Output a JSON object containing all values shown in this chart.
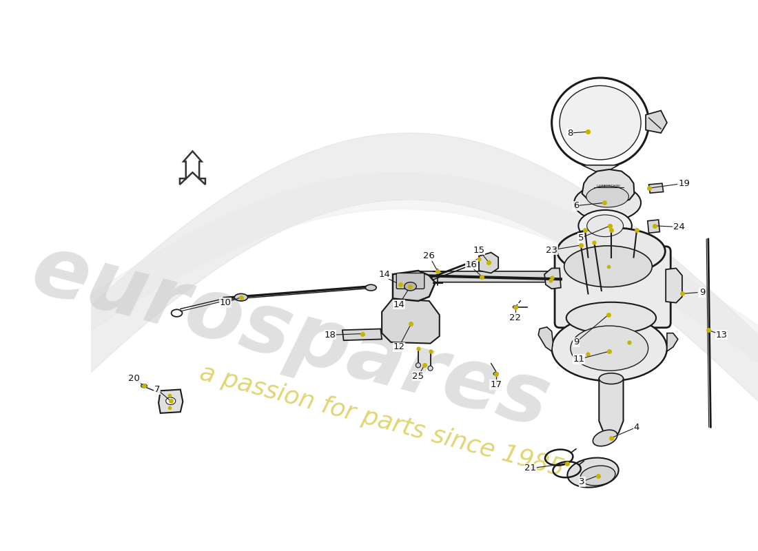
{
  "background_color": "#ffffff",
  "line_color": "#1a1a1a",
  "dot_color": "#c8b400",
  "watermark_color": "#d0d0d0",
  "watermark_text_color": "#c8b400",
  "label_fontsize": 9.5,
  "fig_width": 11.0,
  "fig_height": 8.0,
  "dpi": 100,
  "xlim": [
    0,
    1100
  ],
  "ylim": [
    0,
    800
  ]
}
